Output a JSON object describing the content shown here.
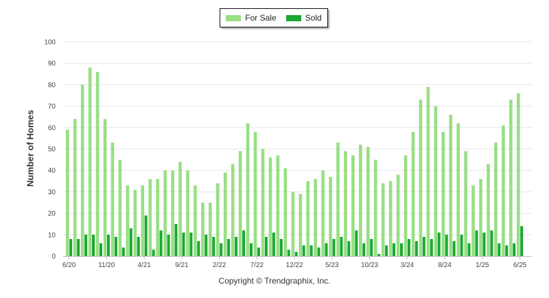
{
  "legend": {
    "for_sale_label": "For Sale",
    "sold_label": "Sold"
  },
  "copyright": "Copyright © Trendgraphix, Inc.",
  "colors": {
    "for_sale": "#98df84",
    "sold": "#1aa832",
    "grid": "#e6e6e6",
    "axis": "#bfbfbf"
  },
  "chart_data": {
    "type": "bar",
    "title": "",
    "xlabel": "",
    "ylabel": "Number of Homes",
    "ylim": [
      0,
      100
    ],
    "yticks": [
      0,
      10,
      20,
      30,
      40,
      50,
      60,
      70,
      80,
      90,
      100
    ],
    "grid": "horizontal",
    "legend_position": "top-center",
    "x_tick_labels": [
      {
        "index": 0,
        "label": "6/20"
      },
      {
        "index": 5,
        "label": "11/20"
      },
      {
        "index": 10,
        "label": "4/21"
      },
      {
        "index": 15,
        "label": "9/21"
      },
      {
        "index": 20,
        "label": "2/22"
      },
      {
        "index": 25,
        "label": "7/22"
      },
      {
        "index": 30,
        "label": "12/22"
      },
      {
        "index": 35,
        "label": "5/23"
      },
      {
        "index": 40,
        "label": "10/23"
      },
      {
        "index": 45,
        "label": "3/24"
      },
      {
        "index": 50,
        "label": "8/24"
      },
      {
        "index": 55,
        "label": "1/25"
      },
      {
        "index": 60,
        "label": "6/25"
      }
    ],
    "categories": [
      "6/20",
      "7/20",
      "8/20",
      "9/20",
      "10/20",
      "11/20",
      "12/20",
      "1/21",
      "2/21",
      "3/21",
      "4/21",
      "5/21",
      "6/21",
      "7/21",
      "8/21",
      "9/21",
      "10/21",
      "11/21",
      "12/21",
      "1/22",
      "2/22",
      "3/22",
      "4/22",
      "5/22",
      "6/22",
      "7/22",
      "8/22",
      "9/22",
      "10/22",
      "11/22",
      "12/22",
      "1/23",
      "2/23",
      "3/23",
      "4/23",
      "5/23",
      "6/23",
      "7/23",
      "8/23",
      "9/23",
      "10/23",
      "11/23",
      "12/23",
      "1/24",
      "2/24",
      "3/24",
      "4/24",
      "5/24",
      "6/24",
      "7/24",
      "8/24",
      "9/24",
      "10/24",
      "11/24",
      "12/24",
      "1/25",
      "2/25",
      "3/25",
      "4/25",
      "5/25",
      "6/25"
    ],
    "series": [
      {
        "name": "For Sale",
        "values": [
          59,
          64,
          80,
          88,
          86,
          64,
          53,
          45,
          33,
          31,
          33,
          36,
          36,
          40,
          40,
          44,
          40,
          33,
          25,
          25,
          34,
          39,
          43,
          49,
          62,
          58,
          50,
          46,
          47,
          41,
          30,
          29,
          35,
          36,
          40,
          37,
          53,
          49,
          47,
          52,
          51,
          45,
          34,
          35,
          38,
          47,
          58,
          73,
          79,
          70,
          58,
          66,
          62,
          49,
          33,
          36,
          43,
          53,
          61,
          73,
          76
        ]
      },
      {
        "name": "Sold",
        "values": [
          8,
          8,
          10,
          10,
          6,
          10,
          9,
          4,
          13,
          9,
          19,
          3,
          12,
          10,
          15,
          11,
          11,
          7,
          10,
          9,
          6,
          8,
          9,
          12,
          6,
          4,
          9,
          11,
          8,
          3,
          2,
          5,
          5,
          4,
          6,
          8,
          9,
          7,
          12,
          6,
          8,
          1,
          5,
          6,
          6,
          8,
          7,
          9,
          8,
          11,
          10,
          7,
          10,
          6,
          12,
          11,
          12,
          6,
          5,
          6,
          14
        ]
      }
    ]
  }
}
